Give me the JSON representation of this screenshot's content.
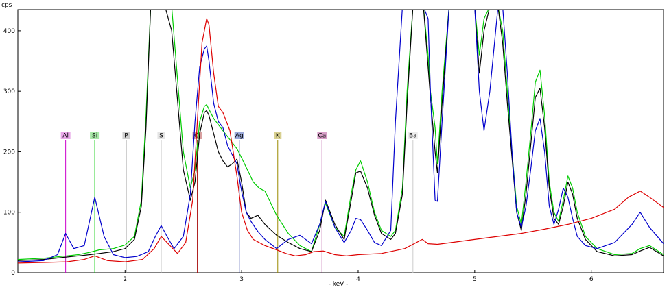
{
  "chart_data": {
    "type": "line",
    "ylabel": "cps",
    "xlabel": "- keV -",
    "xlim": [
      1.08,
      6.62
    ],
    "ylim": [
      0,
      435
    ],
    "x_ticks": [
      2,
      3,
      4,
      5,
      6
    ],
    "y_ticks": [
      0,
      100,
      200,
      300,
      400
    ],
    "grid": false,
    "element_markers": [
      {
        "label": "Al",
        "x": 1.49,
        "color": "#cc00cc",
        "box": "#e8a8e8"
      },
      {
        "label": "Si",
        "x": 1.74,
        "color": "#00cc00",
        "box": "#a8e8a8"
      },
      {
        "label": "P",
        "x": 2.01,
        "color": "#999999",
        "box": "#d0d0d0"
      },
      {
        "label": "S",
        "x": 2.31,
        "color": "#bbbbbb",
        "box": "#e4e4e4"
      },
      {
        "label": "Cl",
        "x": 2.62,
        "color": "#aa1111",
        "box": "#d8a0a0"
      },
      {
        "label": "Ag",
        "x": 2.98,
        "color": "#1a2a99",
        "box": "#9aa8d8"
      },
      {
        "label": "K",
        "x": 3.31,
        "color": "#9a8a00",
        "box": "#d8d090"
      },
      {
        "label": "Ca",
        "x": 3.69,
        "color": "#990077",
        "box": "#d8a0c8"
      },
      {
        "label": "Ba",
        "x": 4.47,
        "color": "#cccccc",
        "box": "#ececec"
      }
    ],
    "series": [
      {
        "color": "#00cc00",
        "x": [
          1.08,
          1.3,
          1.5,
          1.6,
          1.7,
          1.78,
          1.9,
          2.0,
          2.08,
          2.14,
          2.18,
          2.22,
          2.3,
          2.4,
          2.5,
          2.56,
          2.6,
          2.64,
          2.68,
          2.7,
          2.72,
          2.76,
          2.8,
          2.84,
          2.88,
          2.92,
          2.96,
          3.0,
          3.05,
          3.1,
          3.15,
          3.2,
          3.3,
          3.4,
          3.5,
          3.6,
          3.67,
          3.72,
          3.8,
          3.88,
          3.94,
          3.98,
          4.02,
          4.08,
          4.14,
          4.2,
          4.28,
          4.32,
          4.38,
          4.42,
          4.47,
          4.5,
          4.56,
          4.6,
          4.62,
          4.66,
          4.68,
          4.72,
          4.78,
          4.84,
          4.88,
          4.92,
          5.0,
          5.04,
          5.08,
          5.13,
          5.2,
          5.24,
          5.28,
          5.32,
          5.36,
          5.4,
          5.44,
          5.48,
          5.52,
          5.56,
          5.6,
          5.64,
          5.68,
          5.72,
          5.76,
          5.8,
          5.84,
          5.88,
          5.95,
          6.05,
          6.2,
          6.35,
          6.42,
          6.5,
          6.62
        ],
        "y": [
          22,
          24,
          28,
          30,
          34,
          38,
          40,
          46,
          60,
          120,
          260,
          440,
          480,
          440,
          200,
          140,
          170,
          250,
          275,
          278,
          270,
          255,
          245,
          235,
          225,
          215,
          205,
          190,
          170,
          150,
          140,
          135,
          95,
          65,
          45,
          35,
          80,
          115,
          75,
          60,
          130,
          170,
          185,
          150,
          100,
          70,
          60,
          70,
          140,
          300,
          440,
          440,
          440,
          360,
          300,
          240,
          180,
          300,
          440,
          440,
          440,
          440,
          440,
          360,
          420,
          440,
          440,
          400,
          300,
          200,
          110,
          80,
          150,
          230,
          315,
          335,
          260,
          150,
          100,
          85,
          120,
          160,
          140,
          100,
          60,
          40,
          30,
          32,
          40,
          45,
          30
        ]
      },
      {
        "color": "#000000",
        "x": [
          1.08,
          1.3,
          1.5,
          1.6,
          1.7,
          1.78,
          1.9,
          2.0,
          2.08,
          2.14,
          2.18,
          2.22,
          2.3,
          2.4,
          2.5,
          2.56,
          2.6,
          2.64,
          2.68,
          2.7,
          2.72,
          2.76,
          2.8,
          2.84,
          2.88,
          2.92,
          2.96,
          3.0,
          3.04,
          3.08,
          3.14,
          3.2,
          3.3,
          3.4,
          3.5,
          3.6,
          3.67,
          3.72,
          3.8,
          3.88,
          3.94,
          3.98,
          4.02,
          4.08,
          4.14,
          4.2,
          4.28,
          4.32,
          4.38,
          4.42,
          4.47,
          4.5,
          4.56,
          4.6,
          4.62,
          4.66,
          4.68,
          4.72,
          4.78,
          4.84,
          4.88,
          4.92,
          5.0,
          5.04,
          5.08,
          5.13,
          5.2,
          5.24,
          5.28,
          5.32,
          5.36,
          5.4,
          5.44,
          5.48,
          5.52,
          5.56,
          5.6,
          5.64,
          5.68,
          5.72,
          5.76,
          5.8,
          5.84,
          5.88,
          5.95,
          6.05,
          6.2,
          6.35,
          6.42,
          6.5,
          6.62
        ],
        "y": [
          20,
          22,
          26,
          28,
          30,
          32,
          35,
          40,
          55,
          110,
          240,
          440,
          470,
          400,
          170,
          120,
          150,
          230,
          265,
          268,
          260,
          230,
          200,
          185,
          175,
          180,
          188,
          150,
          100,
          90,
          95,
          80,
          62,
          50,
          40,
          35,
          70,
          120,
          80,
          55,
          120,
          165,
          168,
          140,
          95,
          65,
          55,
          65,
          130,
          280,
          440,
          440,
          440,
          340,
          290,
          200,
          165,
          280,
          440,
          440,
          440,
          440,
          440,
          330,
          400,
          440,
          440,
          380,
          280,
          190,
          100,
          70,
          130,
          210,
          290,
          305,
          240,
          140,
          90,
          80,
          110,
          150,
          130,
          90,
          55,
          35,
          28,
          30,
          36,
          42,
          28
        ]
      },
      {
        "color": "#0000cc",
        "x": [
          1.08,
          1.3,
          1.42,
          1.49,
          1.56,
          1.65,
          1.74,
          1.82,
          1.9,
          2.0,
          2.1,
          2.2,
          2.26,
          2.31,
          2.36,
          2.42,
          2.5,
          2.56,
          2.6,
          2.64,
          2.68,
          2.7,
          2.72,
          2.76,
          2.8,
          2.84,
          2.88,
          2.92,
          2.96,
          3.0,
          3.04,
          3.08,
          3.14,
          3.2,
          3.3,
          3.4,
          3.5,
          3.6,
          3.67,
          3.72,
          3.8,
          3.88,
          3.94,
          3.98,
          4.02,
          4.08,
          4.14,
          4.2,
          4.28,
          4.32,
          4.38,
          4.42,
          4.47,
          4.5,
          4.56,
          4.6,
          4.62,
          4.66,
          4.68,
          4.72,
          4.78,
          4.84,
          4.88,
          4.92,
          5.0,
          5.04,
          5.08,
          5.13,
          5.2,
          5.24,
          5.28,
          5.32,
          5.36,
          5.4,
          5.44,
          5.48,
          5.52,
          5.56,
          5.6,
          5.64,
          5.68,
          5.72,
          5.76,
          5.8,
          5.84,
          5.88,
          5.95,
          6.05,
          6.2,
          6.35,
          6.42,
          6.5,
          6.62
        ],
        "y": [
          18,
          20,
          30,
          65,
          40,
          45,
          125,
          60,
          30,
          25,
          27,
          35,
          60,
          78,
          60,
          40,
          60,
          130,
          250,
          340,
          370,
          375,
          350,
          280,
          250,
          240,
          210,
          195,
          180,
          135,
          100,
          85,
          68,
          55,
          40,
          55,
          62,
          48,
          80,
          118,
          75,
          50,
          70,
          90,
          88,
          70,
          50,
          45,
          70,
          250,
          440,
          440,
          440,
          440,
          440,
          420,
          300,
          120,
          118,
          250,
          440,
          440,
          440,
          440,
          440,
          300,
          235,
          300,
          440,
          440,
          330,
          200,
          100,
          75,
          110,
          170,
          235,
          255,
          200,
          110,
          80,
          105,
          140,
          125,
          90,
          60,
          45,
          40,
          50,
          80,
          100,
          75,
          48
        ]
      },
      {
        "color": "#dd0000",
        "x": [
          1.08,
          1.3,
          1.5,
          1.65,
          1.74,
          1.85,
          2.0,
          2.15,
          2.25,
          2.31,
          2.37,
          2.45,
          2.52,
          2.58,
          2.62,
          2.66,
          2.7,
          2.72,
          2.76,
          2.8,
          2.84,
          2.9,
          2.96,
          3.0,
          3.05,
          3.1,
          3.2,
          3.3,
          3.38,
          3.46,
          3.55,
          3.62,
          3.7,
          3.8,
          3.9,
          4.0,
          4.2,
          4.4,
          4.55,
          4.6,
          4.68,
          4.8,
          5.0,
          5.2,
          5.4,
          5.6,
          5.8,
          6.0,
          6.2,
          6.32,
          6.42,
          6.5,
          6.62
        ],
        "y": [
          16,
          17,
          18,
          22,
          28,
          20,
          18,
          22,
          40,
          60,
          48,
          32,
          50,
          120,
          250,
          380,
          420,
          410,
          330,
          275,
          265,
          235,
          160,
          100,
          70,
          55,
          45,
          38,
          32,
          28,
          30,
          35,
          36,
          30,
          28,
          30,
          32,
          40,
          55,
          48,
          47,
          50,
          55,
          60,
          65,
          72,
          80,
          90,
          105,
          125,
          135,
          125,
          108
        ]
      }
    ]
  }
}
